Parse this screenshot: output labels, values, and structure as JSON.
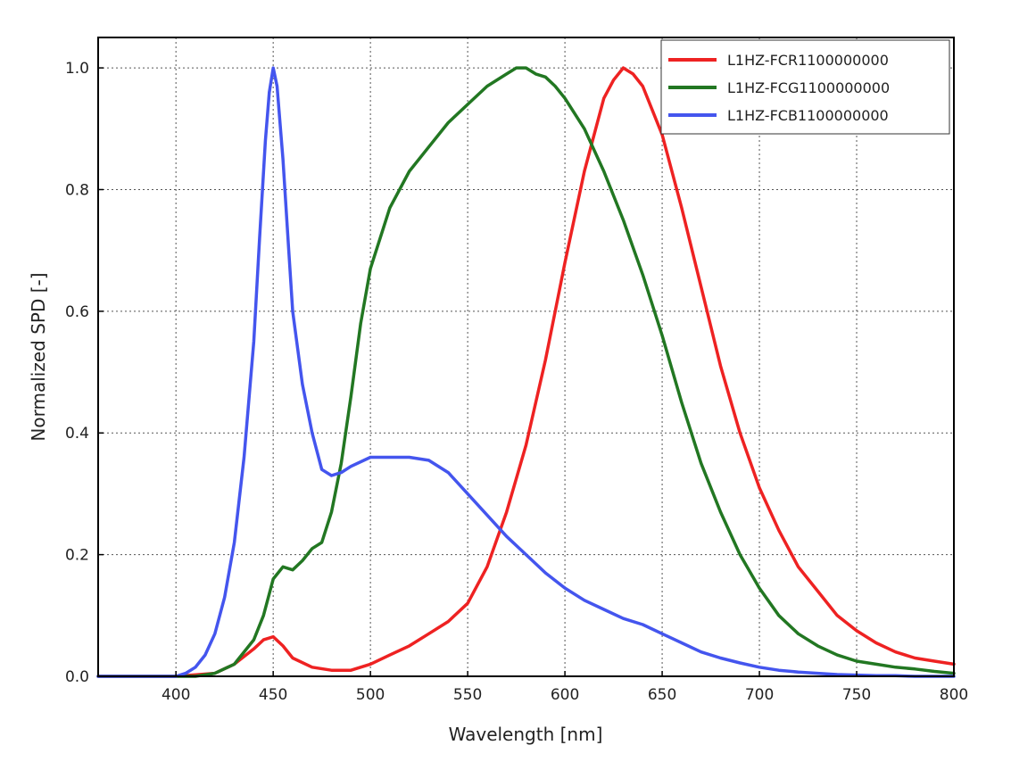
{
  "chart_data": {
    "type": "line",
    "title": "",
    "xlabel": "Wavelength [nm]",
    "ylabel": "Normalized SPD [-]",
    "xlim": [
      360,
      800
    ],
    "ylim": [
      0,
      1.05
    ],
    "grid": true,
    "legend_position": "top-right",
    "x_ticks": [
      400,
      450,
      500,
      550,
      600,
      650,
      700,
      750,
      800
    ],
    "x_tick_labels": [
      "400",
      "450",
      "500",
      "550",
      "600",
      "650",
      "700",
      "750",
      "800"
    ],
    "y_ticks": [
      0.0,
      0.2,
      0.4,
      0.6,
      0.8,
      1.0
    ],
    "y_tick_labels": [
      "0.0",
      "0.2",
      "0.4",
      "0.6",
      "0.8",
      "1.0"
    ],
    "series": [
      {
        "name": "L1HZ-FCR1100000000",
        "color": "#ee2222",
        "x": [
          360,
          400,
          420,
          430,
          440,
          445,
          450,
          455,
          460,
          470,
          480,
          490,
          500,
          510,
          520,
          530,
          540,
          550,
          560,
          570,
          580,
          590,
          600,
          610,
          620,
          625,
          630,
          635,
          640,
          650,
          660,
          670,
          680,
          690,
          700,
          710,
          720,
          730,
          740,
          750,
          760,
          770,
          780,
          790,
          800
        ],
        "y": [
          0.0,
          0.0,
          0.005,
          0.02,
          0.045,
          0.06,
          0.065,
          0.05,
          0.03,
          0.015,
          0.01,
          0.01,
          0.02,
          0.035,
          0.05,
          0.07,
          0.09,
          0.12,
          0.18,
          0.27,
          0.38,
          0.52,
          0.68,
          0.83,
          0.95,
          0.98,
          1.0,
          0.99,
          0.97,
          0.89,
          0.77,
          0.64,
          0.51,
          0.4,
          0.31,
          0.24,
          0.18,
          0.14,
          0.1,
          0.075,
          0.055,
          0.04,
          0.03,
          0.025,
          0.02
        ]
      },
      {
        "name": "L1HZ-FCG1100000000",
        "color": "#227722",
        "x": [
          360,
          410,
          420,
          430,
          440,
          445,
          450,
          455,
          460,
          465,
          470,
          475,
          480,
          485,
          490,
          495,
          500,
          510,
          520,
          530,
          540,
          550,
          560,
          570,
          575,
          580,
          585,
          590,
          595,
          600,
          610,
          620,
          630,
          640,
          650,
          660,
          670,
          680,
          690,
          700,
          710,
          720,
          730,
          740,
          750,
          760,
          770,
          780,
          790,
          800
        ],
        "y": [
          0.0,
          0.0,
          0.005,
          0.02,
          0.06,
          0.1,
          0.16,
          0.18,
          0.175,
          0.19,
          0.21,
          0.22,
          0.27,
          0.35,
          0.46,
          0.58,
          0.67,
          0.77,
          0.83,
          0.87,
          0.91,
          0.94,
          0.97,
          0.99,
          1.0,
          1.0,
          0.99,
          0.985,
          0.97,
          0.95,
          0.9,
          0.83,
          0.75,
          0.66,
          0.56,
          0.45,
          0.35,
          0.27,
          0.2,
          0.145,
          0.1,
          0.07,
          0.05,
          0.035,
          0.025,
          0.02,
          0.015,
          0.012,
          0.008,
          0.005
        ]
      },
      {
        "name": "L1HZ-FCB1100000000",
        "color": "#4455ee",
        "x": [
          360,
          400,
          405,
          410,
          415,
          420,
          425,
          430,
          435,
          440,
          443,
          446,
          448,
          450,
          452,
          455,
          458,
          460,
          465,
          470,
          475,
          480,
          485,
          490,
          500,
          510,
          520,
          530,
          540,
          550,
          560,
          570,
          580,
          590,
          600,
          610,
          620,
          630,
          640,
          650,
          660,
          670,
          680,
          690,
          700,
          710,
          720,
          730,
          740,
          750,
          760,
          770,
          780,
          790,
          800
        ],
        "y": [
          0.0,
          0.0,
          0.005,
          0.015,
          0.035,
          0.07,
          0.13,
          0.22,
          0.36,
          0.55,
          0.72,
          0.88,
          0.96,
          1.0,
          0.97,
          0.85,
          0.7,
          0.6,
          0.48,
          0.4,
          0.34,
          0.33,
          0.335,
          0.345,
          0.36,
          0.36,
          0.36,
          0.355,
          0.335,
          0.3,
          0.265,
          0.23,
          0.2,
          0.17,
          0.145,
          0.125,
          0.11,
          0.095,
          0.085,
          0.07,
          0.055,
          0.04,
          0.03,
          0.022,
          0.015,
          0.01,
          0.007,
          0.005,
          0.003,
          0.002,
          0.001,
          0.001,
          0.0,
          0.0,
          0.0
        ]
      }
    ]
  }
}
